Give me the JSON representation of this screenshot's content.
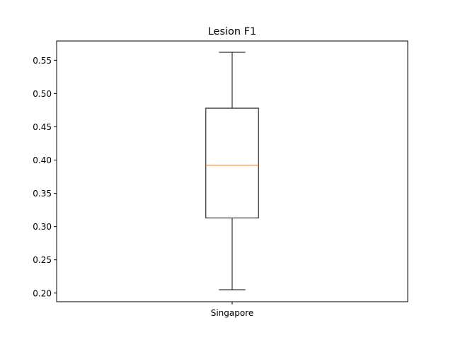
{
  "chart_data": {
    "type": "box",
    "title": "Lesion F1",
    "xlabel": "",
    "ylabel": "",
    "categories": [
      "Singapore"
    ],
    "boxes": [
      {
        "category": "Singapore",
        "whisker_low": 0.205,
        "q1": 0.313,
        "median": 0.392,
        "q3": 0.478,
        "whisker_high": 0.562
      }
    ],
    "ylim": [
      0.187,
      0.579
    ],
    "yticks": [
      0.2,
      0.25,
      0.3,
      0.35,
      0.4,
      0.45,
      0.5,
      0.55
    ],
    "ytick_labels": [
      "0.20",
      "0.25",
      "0.30",
      "0.35",
      "0.40",
      "0.45",
      "0.50",
      "0.55"
    ],
    "grid": false,
    "colors": {
      "box": "#000000",
      "median": "#ff7f0e",
      "whisker": "#000000"
    }
  }
}
